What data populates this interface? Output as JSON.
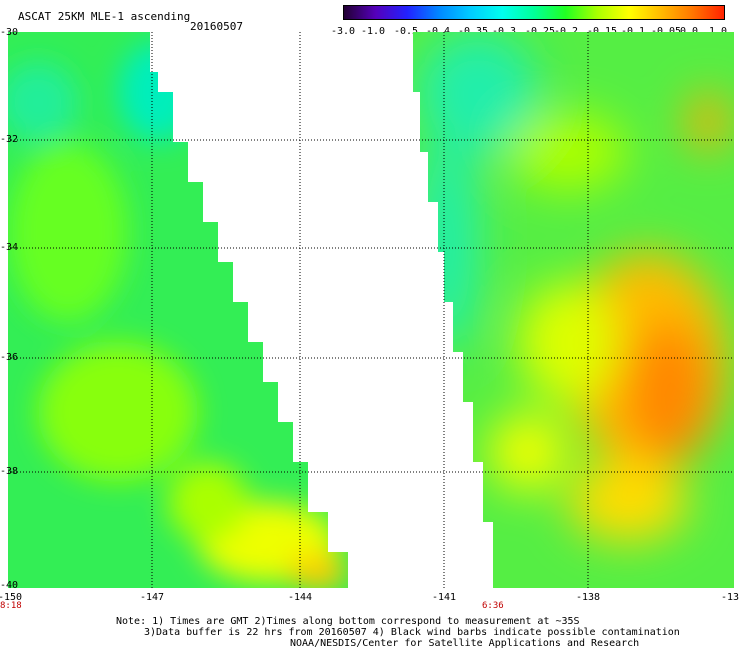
{
  "header": {
    "title": "ASCAT 25KM MLE-1 ascending",
    "date": "20160507"
  },
  "colorbar": {
    "labels": [
      "-3.0",
      "-1.0",
      "-0.5",
      "-0.4",
      "-0.35",
      "-0.3",
      "-0.25",
      "-0.2",
      "-0.15",
      "-0.1",
      "-0.05",
      "0.0",
      "1.0"
    ],
    "colors": [
      "#220033",
      "#5500bb",
      "#2222ff",
      "#0088ff",
      "#00ccff",
      "#00ffee",
      "#00ff99",
      "#22ff22",
      "#aaff00",
      "#ffff00",
      "#ffbb00",
      "#ff7700",
      "#ff2200"
    ]
  },
  "axes": {
    "lat_labels": [
      "-30",
      "-32",
      "-34",
      "-36",
      "-38",
      "-40"
    ],
    "lon_labels": [
      "-150",
      "-147",
      "-144",
      "-141",
      "-138",
      "-13"
    ]
  },
  "pass_times": [
    "8:18",
    "6:36"
  ],
  "notes": [
    "Note: 1) Times are GMT 2)Times along bottom correspond to measurement at ~35S",
    "3)Data buffer is 22 hrs from 20160507 4) Black wind barbs indicate possible contamination",
    "NOAA/NESDIS/Center for Satellite Applications and Research"
  ]
}
